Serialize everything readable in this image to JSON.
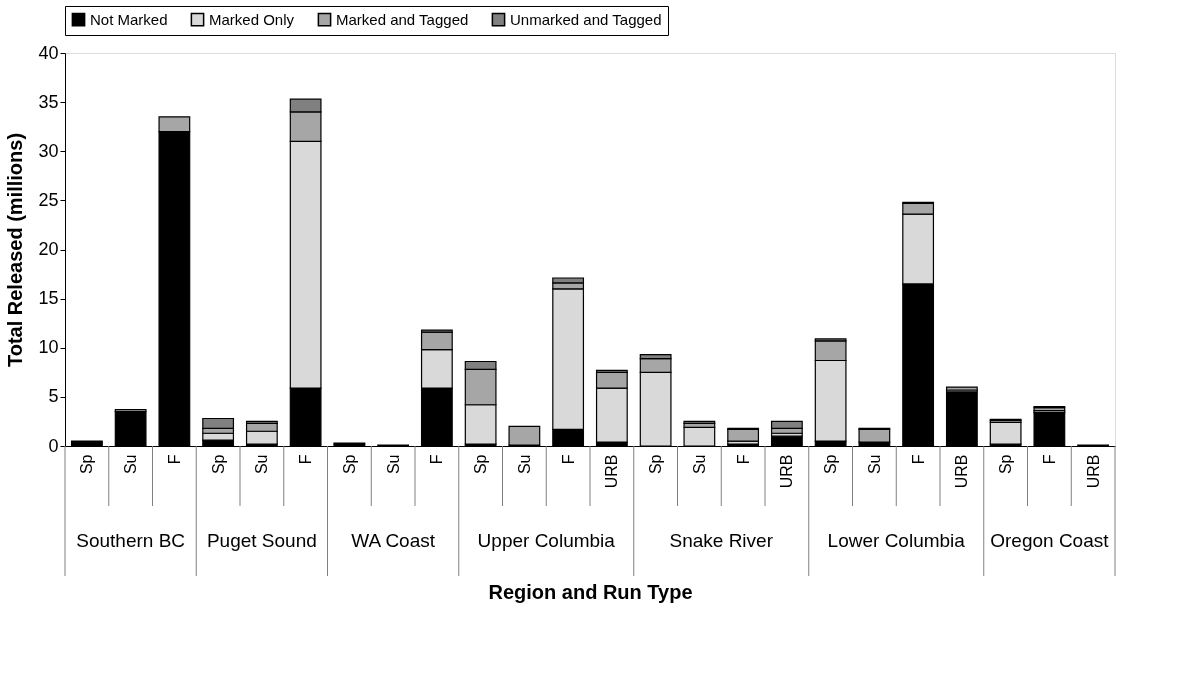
{
  "chart_data": {
    "type": "bar",
    "stacked": true,
    "xlabel": "Region and Run Type",
    "ylabel": "Total Released (millions)",
    "categories": [
      "Sp",
      "Su",
      "F",
      "Sp",
      "Su",
      "F",
      "Sp",
      "Su",
      "F",
      "Sp",
      "Su",
      "F",
      "URB",
      "Sp",
      "Su",
      "F",
      "URB",
      "Sp",
      "Su",
      "F",
      "URB",
      "Sp",
      "F",
      "URB"
    ],
    "annotations": [
      "Southern BC",
      "Puget Sound",
      "WA Coast",
      "Upper Columbia",
      "Snake River",
      "Lower Columbia",
      "Oregon Coast"
    ],
    "series": [
      {
        "name": "Not Marked",
        "color": "#000000",
        "values": [
          0.4,
          3.5,
          32.0,
          0.6,
          0.2,
          5.9,
          0.2,
          0,
          5.9,
          0.2,
          0,
          1.7,
          0.4,
          null,
          null,
          0.2,
          1.0,
          0.5,
          0.4,
          16.5,
          5.5,
          0.2,
          3.4,
          0.1
        ]
      },
      {
        "name": "Marked Only",
        "color": "#d9d9d9",
        "values": [
          0,
          null,
          0,
          0.7,
          1.3,
          25.1,
          0.1,
          0.1,
          3.9,
          4.0,
          0.1,
          14.3,
          5.5,
          7.5,
          1.9,
          0.3,
          0.3,
          8.2,
          null,
          7.1,
          0.2,
          2.2,
          0.2,
          0
        ]
      },
      {
        "name": "Marked and Tagged",
        "color": "#a6a6a6",
        "values": [
          0.1,
          0.2,
          1.5,
          0.5,
          0.8,
          3.0,
          0,
          0,
          1.8,
          3.6,
          1.9,
          0.6,
          1.6,
          1.4,
          0.4,
          1.2,
          0.5,
          2.0,
          1.3,
          1.1,
          0.3,
          0.2,
          0.3,
          0
        ]
      },
      {
        "name": "Unmarked and Tagged",
        "color": "#808080",
        "values": [
          0,
          0,
          0,
          1.0,
          0.2,
          1.3,
          0,
          0,
          0.2,
          0.8,
          0,
          0.5,
          0.2,
          0.4,
          0.2,
          0.1,
          0.7,
          0.2,
          0.1,
          0.1,
          0,
          0.1,
          0.1,
          0
        ]
      }
    ],
    "ylim": [
      0,
      40
    ],
    "yticks": [
      0,
      5,
      10,
      15,
      20,
      25,
      30,
      35,
      40
    ],
    "grid": false,
    "legend": "top"
  }
}
